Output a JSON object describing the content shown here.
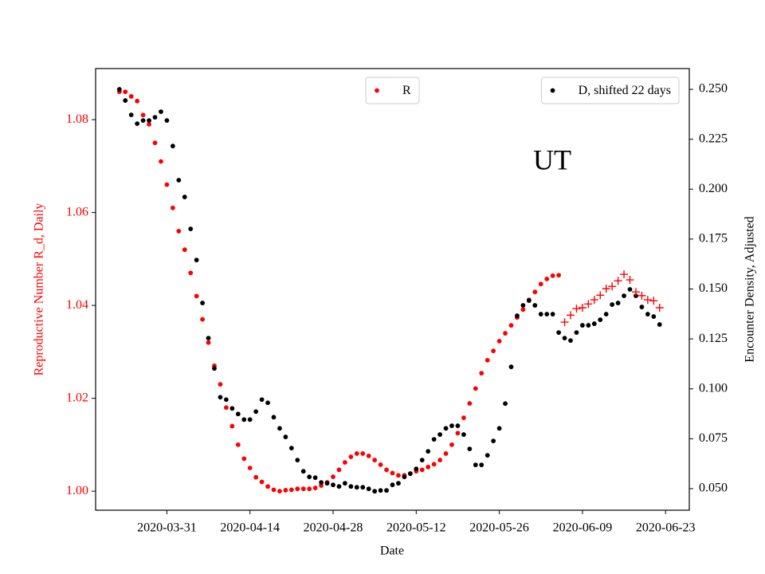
{
  "chart_data": {
    "type": "scatter",
    "annotation": "UT",
    "xlabel": "Date",
    "ylabel": "Reproductive Number R_d, Daily",
    "y2label": "Encounter Density, Adjusted",
    "ylabel_color": "#ff0000",
    "x": [
      "2020-03-23",
      "2020-03-24",
      "2020-03-25",
      "2020-03-26",
      "2020-03-27",
      "2020-03-28",
      "2020-03-29",
      "2020-03-30",
      "2020-03-31",
      "2020-04-01",
      "2020-04-02",
      "2020-04-03",
      "2020-04-04",
      "2020-04-05",
      "2020-04-06",
      "2020-04-07",
      "2020-04-08",
      "2020-04-09",
      "2020-04-10",
      "2020-04-11",
      "2020-04-12",
      "2020-04-13",
      "2020-04-14",
      "2020-04-15",
      "2020-04-16",
      "2020-04-17",
      "2020-04-18",
      "2020-04-19",
      "2020-04-20",
      "2020-04-21",
      "2020-04-22",
      "2020-04-23",
      "2020-04-24",
      "2020-04-25",
      "2020-04-26",
      "2020-04-27",
      "2020-04-28",
      "2020-04-29",
      "2020-04-30",
      "2020-05-01",
      "2020-05-02",
      "2020-05-03",
      "2020-05-04",
      "2020-05-05",
      "2020-05-06",
      "2020-05-07",
      "2020-05-08",
      "2020-05-09",
      "2020-05-10",
      "2020-05-11",
      "2020-05-12",
      "2020-05-13",
      "2020-05-14",
      "2020-05-15",
      "2020-05-16",
      "2020-05-17",
      "2020-05-18",
      "2020-05-19",
      "2020-05-20",
      "2020-05-21",
      "2020-05-22",
      "2020-05-23",
      "2020-05-24",
      "2020-05-25",
      "2020-05-26",
      "2020-05-27",
      "2020-05-28",
      "2020-05-29",
      "2020-05-30",
      "2020-05-31",
      "2020-06-01",
      "2020-06-02",
      "2020-06-03",
      "2020-06-04",
      "2020-06-05",
      "2020-06-06",
      "2020-06-07",
      "2020-06-08",
      "2020-06-09",
      "2020-06-10",
      "2020-06-11",
      "2020-06-12",
      "2020-06-13",
      "2020-06-14",
      "2020-06-15",
      "2020-06-16",
      "2020-06-17",
      "2020-06-18",
      "2020-06-19",
      "2020-06-20",
      "2020-06-21",
      "2020-06-22"
    ],
    "xlim": [
      "2020-03-19",
      "2020-06-27"
    ],
    "xticks": [
      "2020-03-31",
      "2020-04-14",
      "2020-04-28",
      "2020-05-12",
      "2020-05-26",
      "2020-06-09",
      "2020-06-23"
    ],
    "ylim": [
      0.9959,
      1.091
    ],
    "yticks": [
      {
        "value": 1,
        "label": "1.00"
      },
      1.02,
      1.04,
      1.06,
      1.08
    ],
    "y2lim": [
      0.0392,
      0.2604
    ],
    "y2ticks": [
      {
        "value": 0.05,
        "label": "0.050"
      },
      0.075,
      {
        "value": 0.1,
        "label": "0.100"
      },
      0.125,
      {
        "value": 0.15,
        "label": "0.150"
      },
      0.175,
      {
        "value": 0.2,
        "label": "0.200"
      },
      0.225,
      {
        "value": 0.25,
        "label": "0.250"
      }
    ],
    "series": [
      {
        "name": "R",
        "color": "#ff0000",
        "marker": "o",
        "legend": "upper center",
        "values": [
          1.086,
          1.086,
          1.085,
          1.084,
          1.081,
          1.079,
          1.075,
          1.071,
          1.066,
          1.061,
          1.056,
          1.052,
          1.047,
          1.042,
          1.037,
          1.032,
          1.027,
          1.023,
          1.018,
          1.014,
          1.01,
          1.007,
          1.005,
          1.003,
          1.002,
          1.001,
          1.0003,
          1.0,
          1.0002,
          1.0003,
          1.0005,
          1.0005,
          1.0005,
          1.0007,
          1.0012,
          1.0019,
          1.0031,
          1.0046,
          1.0062,
          1.0074,
          1.0081,
          1.0081,
          1.0076,
          1.0067,
          1.0057,
          1.0046,
          1.0039,
          1.0034,
          1.0034,
          1.0038,
          1.0043,
          1.0046,
          1.0052,
          1.0058,
          1.0067,
          1.0081,
          1.01,
          1.0125,
          1.0158,
          1.0189,
          1.0221,
          1.0254,
          1.0282,
          1.0302,
          1.0323,
          1.034,
          1.0357,
          1.0374,
          1.0391,
          1.0412,
          1.0429,
          1.0446,
          1.0457,
          1.0464,
          1.0465,
          null,
          null,
          null,
          null,
          null,
          null,
          null,
          null,
          null,
          null,
          null,
          null,
          null,
          null,
          null,
          null,
          null
        ]
      },
      {
        "name": "D, shifted 22 days",
        "color": "#000000",
        "marker": "o",
        "axis": "y2",
        "legend": "upper right",
        "values": [
          0.25,
          0.2444,
          0.2372,
          0.2328,
          0.2344,
          0.2344,
          0.236,
          0.2388,
          0.2344,
          0.2216,
          0.2045,
          0.1961,
          0.1801,
          0.1645,
          0.143,
          0.1254,
          0.1102,
          0.0958,
          0.0946,
          0.0902,
          0.0874,
          0.0846,
          0.0846,
          0.0886,
          0.0946,
          0.093,
          0.0858,
          0.0802,
          0.0759,
          0.0703,
          0.0643,
          0.0587,
          0.0559,
          0.0555,
          0.0531,
          0.0527,
          0.0519,
          0.0511,
          0.0527,
          0.0511,
          0.0507,
          0.0507,
          0.0499,
          0.0487,
          0.0491,
          0.0491,
          0.0519,
          0.0527,
          0.0559,
          0.0575,
          0.0599,
          0.0643,
          0.0687,
          0.0747,
          0.0771,
          0.0802,
          0.0815,
          0.0815,
          0.0771,
          0.0699,
          0.0619,
          0.0619,
          0.0667,
          0.0739,
          0.0802,
          0.0926,
          0.111,
          0.1366,
          0.1418,
          0.1442,
          0.1418,
          0.1374,
          0.1374,
          0.1374,
          0.1282,
          0.1254,
          0.1242,
          0.1282,
          0.1318,
          0.1318,
          0.1326,
          0.1346,
          0.1374,
          0.1422,
          0.143,
          0.1466,
          0.1498,
          0.1466,
          0.141,
          0.1374,
          0.1362,
          0.1322
        ]
      },
      {
        "color": "#ff0000",
        "marker": "+",
        "values": [
          null,
          null,
          null,
          null,
          null,
          null,
          null,
          null,
          null,
          null,
          null,
          null,
          null,
          null,
          null,
          null,
          null,
          null,
          null,
          null,
          null,
          null,
          null,
          null,
          null,
          null,
          null,
          null,
          null,
          null,
          null,
          null,
          null,
          null,
          null,
          null,
          null,
          null,
          null,
          null,
          null,
          null,
          null,
          null,
          null,
          null,
          null,
          null,
          null,
          null,
          null,
          null,
          null,
          null,
          null,
          null,
          null,
          null,
          null,
          null,
          null,
          null,
          null,
          null,
          null,
          null,
          null,
          null,
          null,
          null,
          null,
          null,
          null,
          null,
          null,
          1.0364,
          1.0379,
          1.0393,
          1.0395,
          1.0403,
          1.0412,
          1.0422,
          1.0436,
          1.0441,
          1.0453,
          1.0467,
          1.0455,
          1.0429,
          1.0421,
          1.0412,
          1.041,
          1.0395
        ]
      }
    ]
  }
}
